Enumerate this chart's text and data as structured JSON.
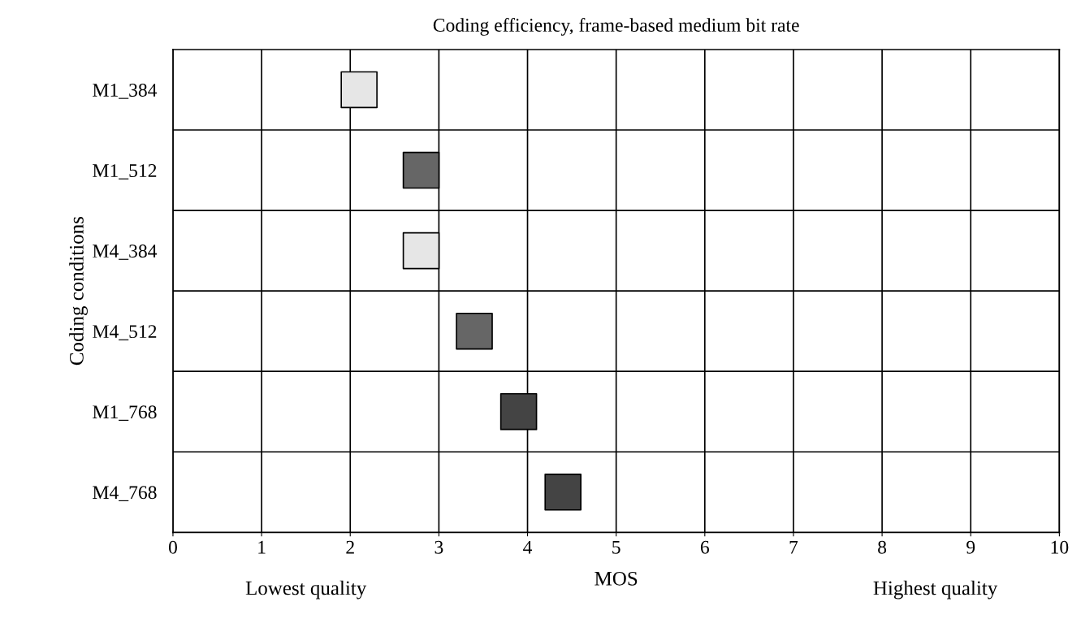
{
  "chart_data": {
    "type": "scatter",
    "title": "Coding efficiency, frame-based medium bit rate",
    "xlabel": "MOS",
    "ylabel": "Coding conditions",
    "categories": [
      "M1_384",
      "M1_512",
      "M4_384",
      "M4_512",
      "M1_768",
      "M4_768"
    ],
    "values": [
      2.1,
      2.8,
      2.8,
      3.4,
      3.9,
      4.4
    ],
    "colors": [
      "#e6e6e6",
      "#666666",
      "#e6e6e6",
      "#666666",
      "#444444",
      "#444444"
    ],
    "orientation": "horizontal",
    "marker": "square",
    "grid": true,
    "xlim": [
      0,
      10
    ],
    "xticks": [
      0,
      1,
      2,
      3,
      4,
      5,
      6,
      7,
      8,
      9,
      10
    ],
    "annotations": [
      "Lowest quality",
      "Highest quality"
    ]
  }
}
